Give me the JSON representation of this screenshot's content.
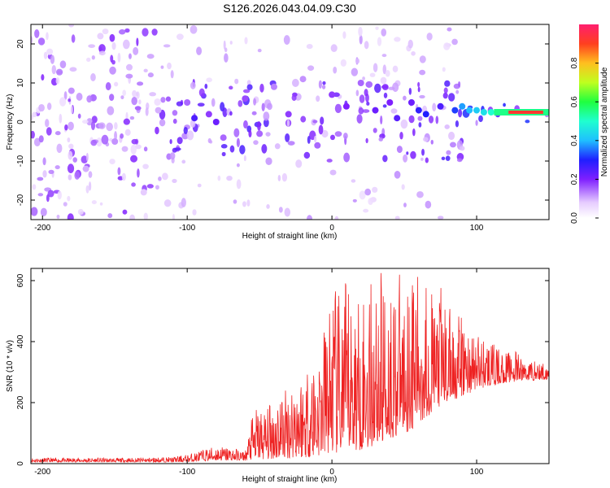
{
  "title": "S126.2026.043.04.09.C30",
  "chart_data": [
    {
      "type": "heatmap",
      "title": "S126.2026.043.04.09.C30",
      "xlabel": "Height of straight line (km)",
      "ylabel": "Frequency (Hz)",
      "xlim": [
        -208,
        150
      ],
      "ylim": [
        -25,
        25
      ],
      "xticks": [
        -200,
        -100,
        0,
        100
      ],
      "yticks": [
        -20,
        -10,
        0,
        10,
        20
      ],
      "colorbar": {
        "label": "Normalized spectral amplitude",
        "range": [
          0,
          1
        ],
        "ticks": [
          0.0,
          0.2,
          0.4,
          0.6,
          0.8
        ],
        "tick_labels": [
          "0.0",
          "0.2",
          "0.4",
          "0.6",
          "0.8"
        ]
      },
      "blobs": [
        {
          "x": -195,
          "f": 18,
          "a": 0.05
        },
        {
          "x": -180,
          "f": 8,
          "a": 0.12
        },
        {
          "x": -170,
          "f": -12,
          "a": 0.1
        },
        {
          "x": -160,
          "f": 22,
          "a": 0.07
        },
        {
          "x": -150,
          "f": -5,
          "a": 0.12
        },
        {
          "x": -140,
          "f": 14,
          "a": 0.09
        },
        {
          "x": -130,
          "f": -18,
          "a": 0.08
        },
        {
          "x": -120,
          "f": 3,
          "a": 0.1
        },
        {
          "x": -100,
          "f": 5,
          "a": 0.15
        },
        {
          "x": -95,
          "f": 1,
          "a": 0.25
        },
        {
          "x": -85,
          "f": 2,
          "a": 0.18
        },
        {
          "x": -80,
          "f": 0,
          "a": 0.22
        },
        {
          "x": -75,
          "f": -4,
          "a": 0.15
        },
        {
          "x": -60,
          "f": 6,
          "a": 0.17
        },
        {
          "x": -50,
          "f": -3,
          "a": 0.15
        },
        {
          "x": -40,
          "f": 9,
          "a": 0.13
        },
        {
          "x": -30,
          "f": 2,
          "a": 0.18
        },
        {
          "x": -20,
          "f": 11,
          "a": 0.12
        },
        {
          "x": -10,
          "f": -6,
          "a": 0.15
        },
        {
          "x": 0,
          "f": 7,
          "a": 0.18
        },
        {
          "x": 10,
          "f": 4,
          "a": 0.2
        },
        {
          "x": 20,
          "f": 10,
          "a": 0.15
        },
        {
          "x": 30,
          "f": 3,
          "a": 0.22
        },
        {
          "x": 40,
          "f": 5,
          "a": 0.2
        },
        {
          "x": 45,
          "f": 1,
          "a": 0.24
        },
        {
          "x": 55,
          "f": 5,
          "a": 0.22
        },
        {
          "x": 60,
          "f": 3,
          "a": 0.28
        },
        {
          "x": 65,
          "f": 2,
          "a": 0.3
        },
        {
          "x": 75,
          "f": 4,
          "a": 0.25
        },
        {
          "x": 85,
          "f": 3,
          "a": 0.32
        },
        {
          "x": 90,
          "f": 4,
          "a": 0.38
        },
        {
          "x": 95,
          "f": 3,
          "a": 0.4
        },
        {
          "x": 100,
          "f": 3,
          "a": 0.42
        },
        {
          "x": 105,
          "f": 2.5,
          "a": 0.45
        },
        {
          "x": 110,
          "f": 2.5,
          "a": 0.5
        },
        {
          "x": 115,
          "f": 2.5,
          "a": 0.55
        },
        {
          "x": 120,
          "f": 2.5,
          "a": 0.62
        },
        {
          "x": 125,
          "f": 2.5,
          "a": 0.72
        },
        {
          "x": 130,
          "f": 2.5,
          "a": 0.85
        },
        {
          "x": 135,
          "f": 2.5,
          "a": 0.95
        },
        {
          "x": 140,
          "f": 2.5,
          "a": 0.9
        },
        {
          "x": 145,
          "f": 2.5,
          "a": 0.75
        }
      ]
    },
    {
      "type": "line",
      "xlabel": "Height of straight line (km)",
      "ylabel": "SNR (10 * v/v)",
      "xlim": [
        -208,
        150
      ],
      "ylim": [
        0,
        640
      ],
      "xticks": [
        -200,
        -100,
        0,
        100
      ],
      "yticks": [
        0,
        200,
        400,
        600
      ],
      "series": [
        {
          "name": "SNR",
          "color": "#ee2222",
          "x": [
            -208,
            -190,
            -170,
            -150,
            -130,
            -110,
            -100,
            -90,
            -80,
            -70,
            -60,
            -55,
            -50,
            -45,
            -40,
            -35,
            -30,
            -25,
            -20,
            -15,
            -10,
            -5,
            0,
            5,
            10,
            15,
            20,
            25,
            30,
            35,
            40,
            45,
            50,
            55,
            60,
            65,
            70,
            75,
            80,
            85,
            90,
            95,
            100,
            105,
            110,
            115,
            120,
            125,
            130,
            135,
            140,
            145,
            150
          ],
          "peak": [
            20,
            18,
            20,
            18,
            20,
            22,
            30,
            45,
            60,
            55,
            40,
            160,
            200,
            180,
            230,
            260,
            250,
            330,
            300,
            380,
            360,
            470,
            590,
            560,
            600,
            580,
            560,
            610,
            600,
            640,
            590,
            630,
            600,
            640,
            610,
            630,
            560,
            590,
            520,
            500,
            480,
            450,
            440,
            420,
            400,
            380,
            370,
            370,
            360,
            350,
            340,
            330,
            330
          ],
          "floor": [
            5,
            5,
            5,
            5,
            5,
            5,
            5,
            8,
            10,
            10,
            10,
            12,
            12,
            15,
            15,
            15,
            18,
            20,
            20,
            20,
            25,
            30,
            35,
            30,
            35,
            40,
            45,
            50,
            60,
            70,
            80,
            90,
            100,
            110,
            130,
            150,
            170,
            180,
            200,
            210,
            220,
            230,
            240,
            250,
            255,
            260,
            265,
            268,
            270,
            272,
            273,
            275,
            275
          ]
        }
      ]
    }
  ]
}
